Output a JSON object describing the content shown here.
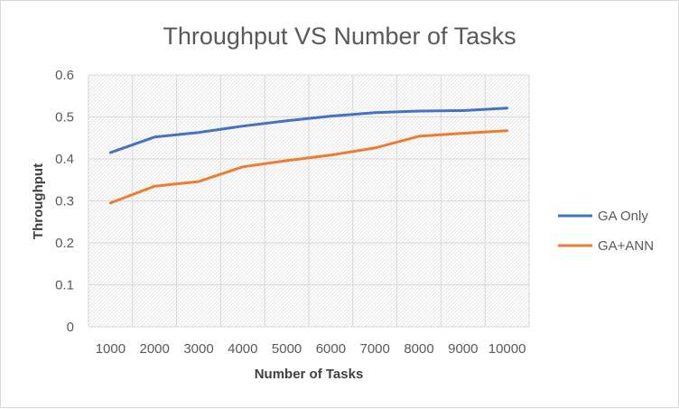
{
  "chart_data": {
    "type": "line",
    "title": "Throughput VS Number of Tasks",
    "xlabel": "Number of Tasks",
    "ylabel": "Throughput",
    "categories": [
      "1000",
      "2000",
      "3000",
      "4000",
      "5000",
      "6000",
      "7000",
      "8000",
      "9000",
      "10000"
    ],
    "ylim": [
      0,
      0.6
    ],
    "yticks": [
      "0",
      "0.1",
      "0.2",
      "0.3",
      "0.4",
      "0.5",
      "0.6"
    ],
    "grid": true,
    "legend_position": "right",
    "series": [
      {
        "name": "GA Only",
        "color": "#4472c4",
        "values": [
          0.415,
          0.452,
          0.463,
          0.478,
          0.491,
          0.502,
          0.51,
          0.514,
          0.515,
          0.521
        ]
      },
      {
        "name": "GA+ANN",
        "color": "#ed7d31",
        "values": [
          0.295,
          0.335,
          0.346,
          0.381,
          0.396,
          0.409,
          0.426,
          0.454,
          0.461,
          0.467
        ]
      }
    ]
  }
}
